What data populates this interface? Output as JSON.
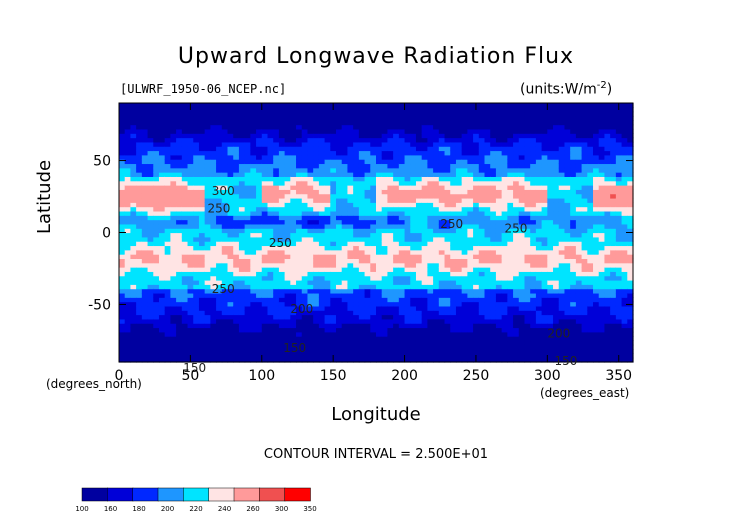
{
  "chart_data": {
    "type": "heatmap",
    "title": "Upward Longwave Radiation Flux",
    "subtitle_left": "[ULWRF_1950-06_NCEP.nc]",
    "subtitle_right": "(units:W/m^-2)",
    "xlabel": "Longitude",
    "ylabel": "Latitude",
    "x_unit_label": "(degrees_east)",
    "x_origin_label": "(degrees_north)",
    "xlim": [
      0,
      360
    ],
    "ylim": [
      -90,
      90
    ],
    "x_ticks": [
      0,
      50,
      100,
      150,
      200,
      250,
      300,
      350
    ],
    "y_ticks": [
      -50,
      0,
      50
    ],
    "contour_interval_text": "CONTOUR INTERVAL = 2.500E+01",
    "contour_labels": [
      {
        "lon": 65,
        "lat": 26,
        "text": "300"
      },
      {
        "lon": 62,
        "lat": 14,
        "text": "250"
      },
      {
        "lon": 105,
        "lat": -10,
        "text": "250"
      },
      {
        "lon": 225,
        "lat": 3,
        "text": "250"
      },
      {
        "lon": 270,
        "lat": 0,
        "text": "250"
      },
      {
        "lon": 65,
        "lat": -42,
        "text": "250"
      },
      {
        "lon": 120,
        "lat": -56,
        "text": "200"
      },
      {
        "lon": 300,
        "lat": -73,
        "text": "200"
      },
      {
        "lon": 115,
        "lat": -83,
        "text": "150"
      },
      {
        "lon": 45,
        "lat": -97,
        "text": "150"
      },
      {
        "lon": 305,
        "lat": -92,
        "text": "150"
      }
    ],
    "colorbar": {
      "levels": [
        100,
        160,
        180,
        200,
        220,
        240,
        260,
        300,
        350
      ],
      "colors": [
        "#0000a0",
        "#0000d8",
        "#0028ff",
        "#1e96ff",
        "#00e4ff",
        "#ffe4e4",
        "#ff9a9a",
        "#f05050",
        "#ff0000"
      ]
    },
    "field_model": "zonal bands: polar lows ~110-180, midlatitude ~200-240, subtropical highs 260-320 over deserts (lon 0-60, 100-150, 200-300, 330-360) at lat 15-35, equatorial ITCZ lows 210-240"
  }
}
